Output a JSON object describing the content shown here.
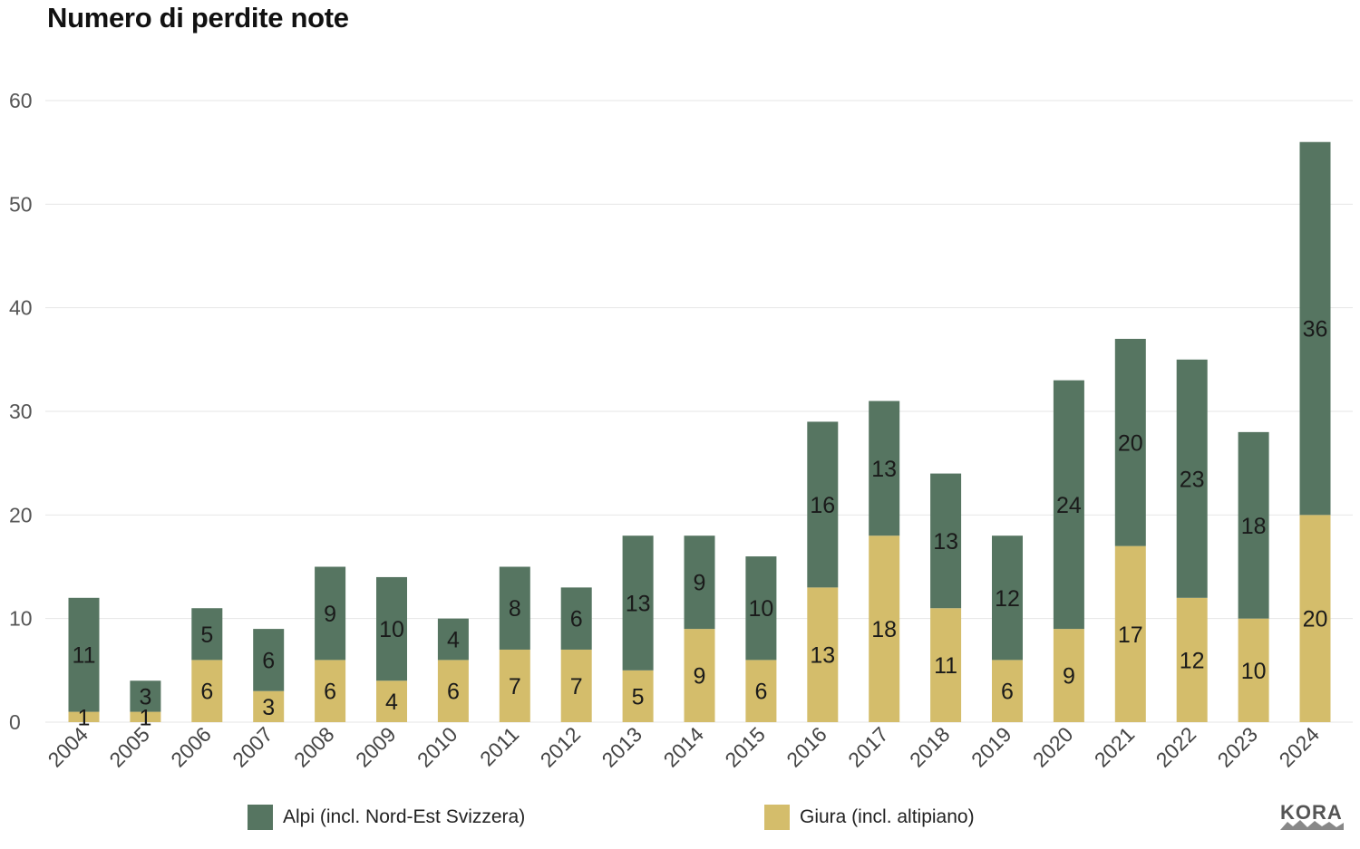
{
  "title": "Numero di perdite note",
  "chart_data": {
    "type": "bar",
    "stacked": true,
    "title": "Numero di perdite note",
    "xlabel": "",
    "ylabel": "",
    "ylim": [
      0,
      60
    ],
    "yticks": [
      0,
      10,
      20,
      30,
      40,
      50,
      60
    ],
    "grid": true,
    "legend_position": "bottom",
    "categories": [
      "2004",
      "2005",
      "2006",
      "2007",
      "2008",
      "2009",
      "2010",
      "2011",
      "2012",
      "2013",
      "2014",
      "2015",
      "2016",
      "2017",
      "2018",
      "2019",
      "2020",
      "2021",
      "2022",
      "2023",
      "2024"
    ],
    "series": [
      {
        "name": "Giura (incl. altipiano)",
        "color": "#d4bd6b",
        "values": [
          1,
          1,
          6,
          3,
          6,
          4,
          6,
          7,
          7,
          5,
          9,
          6,
          13,
          18,
          11,
          6,
          9,
          17,
          12,
          10,
          20
        ]
      },
      {
        "name": "Alpi (incl. Nord-Est Svizzera)",
        "color": "#567561",
        "values": [
          11,
          3,
          5,
          6,
          9,
          10,
          4,
          8,
          6,
          13,
          9,
          10,
          16,
          13,
          13,
          12,
          24,
          20,
          23,
          18,
          36
        ]
      }
    ]
  },
  "legend": {
    "alpi_label": "Alpi (incl. Nord-Est Svizzera)",
    "giura_label": "Giura (incl. altipiano)",
    "alpi_color": "#567561",
    "giura_color": "#d4bd6b"
  },
  "logo_text": "KORA"
}
